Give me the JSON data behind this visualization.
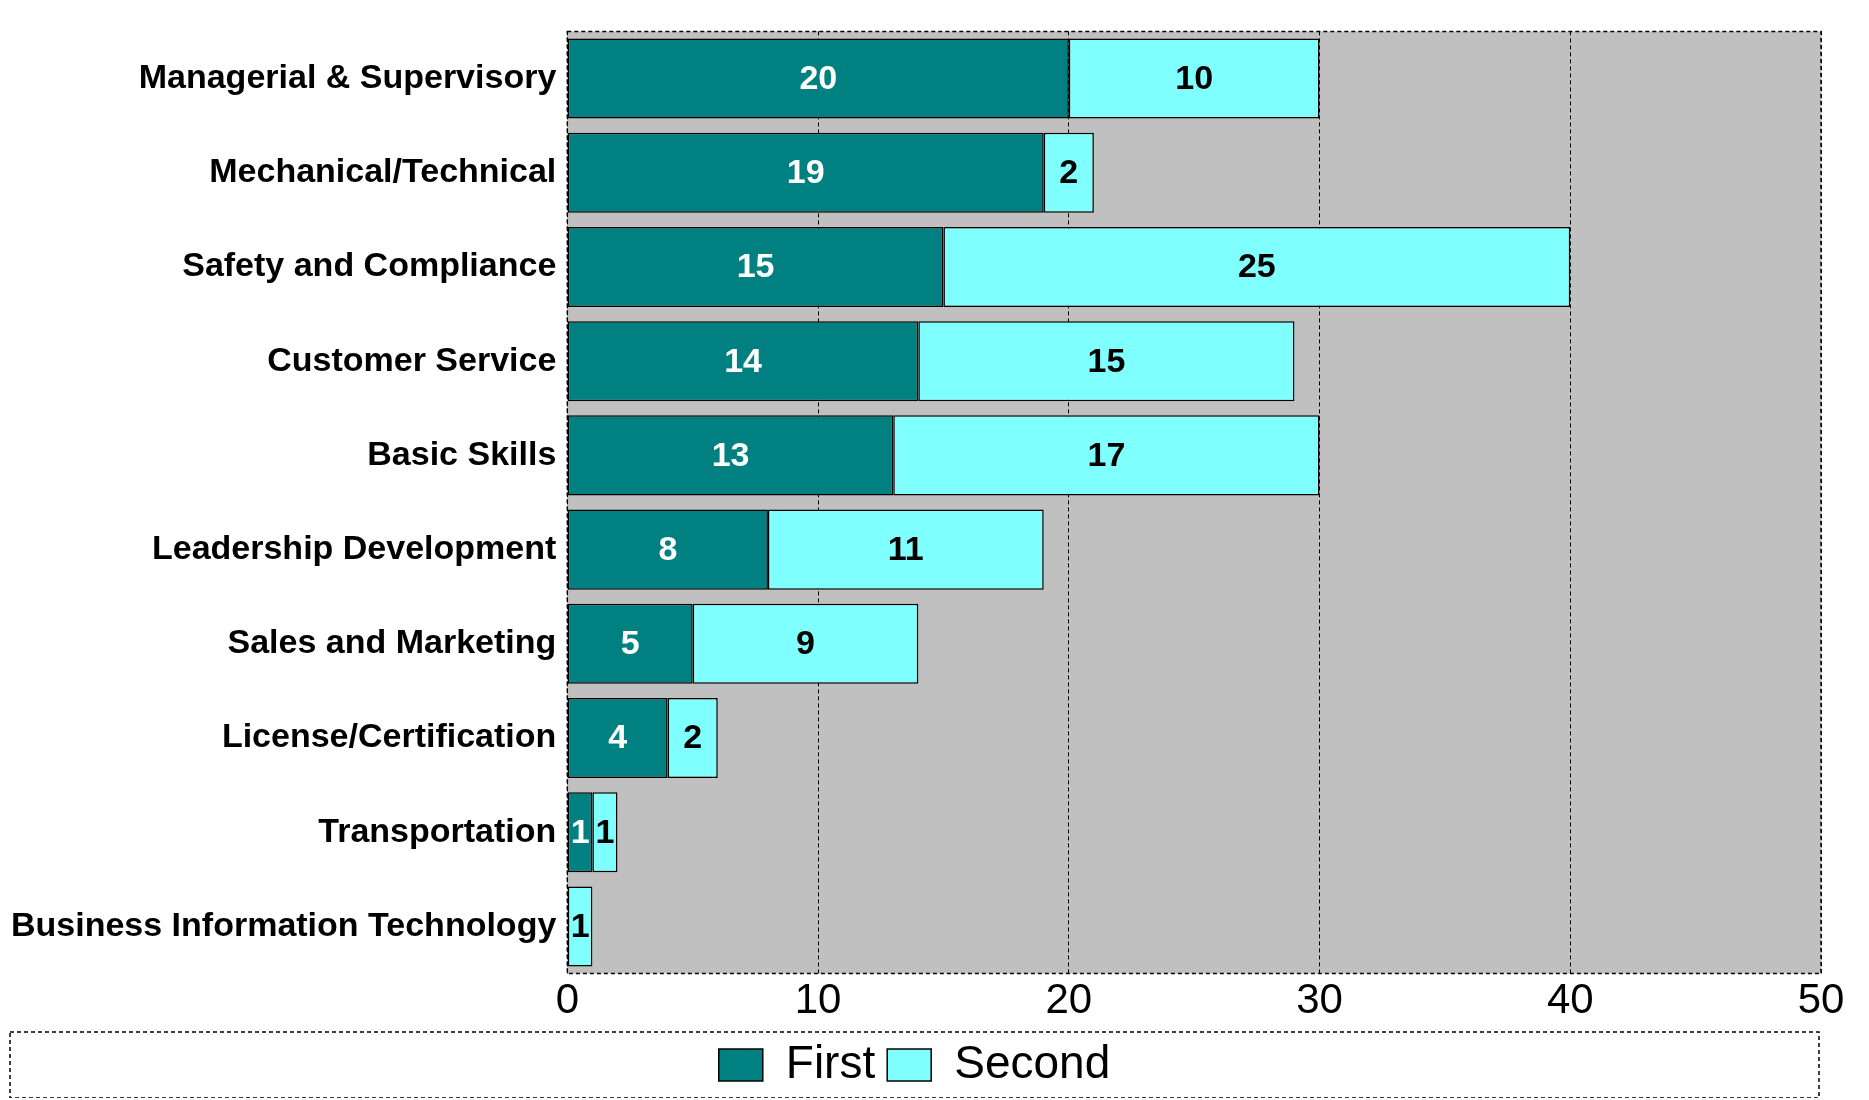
{
  "chart_data": {
    "type": "bar",
    "orientation": "horizontal",
    "stacked": true,
    "categories": [
      "Managerial & Supervisory",
      "Mechanical/Technical",
      "Safety and Compliance",
      "Customer Service",
      "Basic Skills",
      "Leadership Development",
      "Sales and Marketing",
      "License/Certification",
      "Transportation",
      "Business Information Technology"
    ],
    "series": [
      {
        "name": "First",
        "color": "#008080",
        "values": [
          20,
          19,
          15,
          14,
          13,
          8,
          5,
          4,
          1,
          null
        ]
      },
      {
        "name": "Second",
        "color": "#80ffff",
        "values": [
          10,
          2,
          25,
          15,
          17,
          11,
          9,
          2,
          1,
          1
        ]
      }
    ],
    "xlim": [
      0,
      50
    ],
    "xticks": [
      0,
      10,
      20,
      30,
      40,
      50
    ],
    "grid": "x",
    "legend": "bottom",
    "data_labels": true
  }
}
